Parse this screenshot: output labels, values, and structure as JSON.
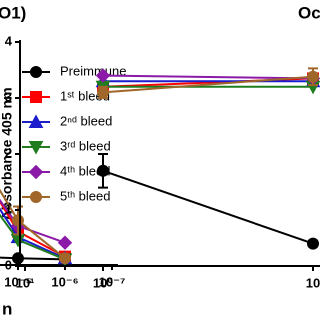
{
  "chart_data": [
    {
      "type": "line",
      "title": "O1)",
      "x_label": "n",
      "legend": true,
      "categories": [
        null,
        "10⁻⁵",
        "10⁻⁶",
        "10⁻⁷"
      ],
      "ylim": [
        0,
        4
      ],
      "series": [
        {
          "name": "Preimmune",
          "color": "#000000",
          "marker": "circle",
          "values": [
            0.15,
            0.12,
            0.1,
            null
          ]
        },
        {
          "name": "1ˢᵗ bleed",
          "color": "#ff0000",
          "marker": "square",
          "values": [
            2.0,
            0.6,
            0.15,
            null
          ]
        },
        {
          "name": "2ⁿᵈ bleed",
          "color": "#1c1ccc",
          "marker": "triangle-up",
          "values": [
            1.8,
            0.5,
            0.12,
            null
          ]
        },
        {
          "name": "3ʳᵈ bleed",
          "color": "#1e7d1e",
          "marker": "triangle-down",
          "values": [
            1.6,
            0.45,
            0.1,
            null
          ]
        },
        {
          "name": "4ᵗʰ bleed",
          "color": "#8b1aa8",
          "marker": "diamond",
          "values": [
            1.9,
            0.7,
            0.4,
            null
          ]
        },
        {
          "name": "5ᵗʰ bleed",
          "color": "#a0662a",
          "marker": "circle",
          "values": [
            2.2,
            0.8,
            0.12,
            null
          ],
          "errors": [
            null,
            0.25,
            null,
            null
          ]
        }
      ]
    },
    {
      "type": "line",
      "title": "Oc",
      "y_label": "Absorbance 405 nm",
      "legend": false,
      "categories": [
        "10¹",
        "10⁰",
        "10"
      ],
      "ylim": [
        0,
        4
      ],
      "yticks": [
        0,
        1,
        2,
        3,
        4
      ],
      "series": [
        {
          "color": "#000000",
          "marker": "circle",
          "values": [
            null,
            1.7,
            0.4
          ],
          "errors": [
            null,
            0.3,
            0.05
          ]
        },
        {
          "color": "#ff0000",
          "marker": "square",
          "values": [
            null,
            3.2,
            3.35
          ]
        },
        {
          "color": "#1c1ccc",
          "marker": "triangle-up",
          "values": [
            null,
            3.3,
            3.3
          ]
        },
        {
          "color": "#1e7d1e",
          "marker": "triangle-down",
          "values": [
            null,
            3.2,
            3.2
          ]
        },
        {
          "color": "#8b1aa8",
          "marker": "diamond",
          "values": [
            null,
            3.4,
            3.35
          ]
        },
        {
          "color": "#a0662a",
          "marker": "circle",
          "values": [
            null,
            3.1,
            3.38
          ],
          "errors": [
            null,
            0.1,
            0.15
          ]
        }
      ]
    }
  ]
}
